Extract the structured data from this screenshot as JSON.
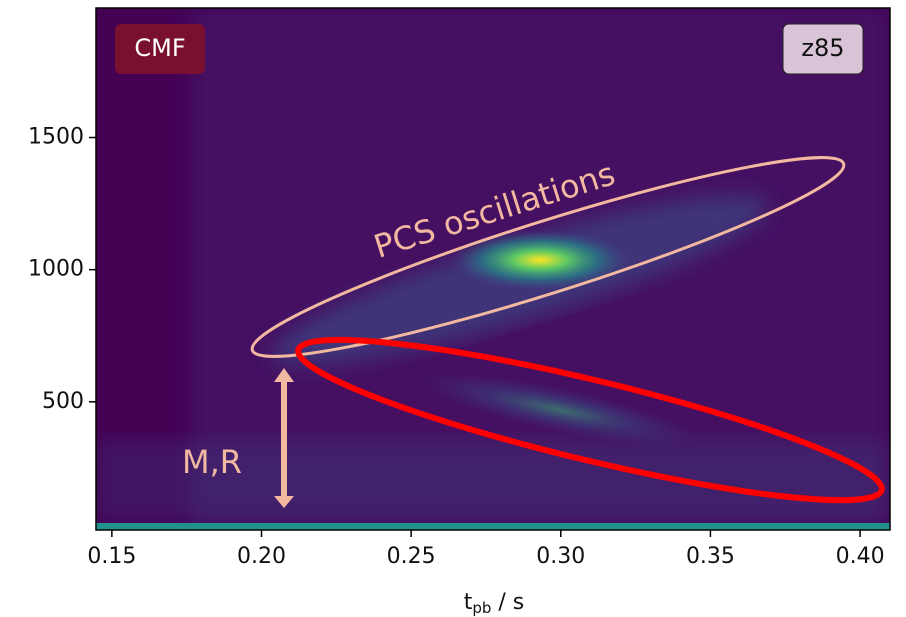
{
  "chart_data": {
    "type": "spectrogram",
    "xlabel": {
      "base": "t",
      "subscript": "pb",
      "rest": " / s"
    },
    "xlim": [
      0.1447,
      0.41
    ],
    "ylim": [
      15,
      1990
    ],
    "xticks": [
      0.15,
      {
        "value": 0.2,
        "label": "0.20"
      },
      0.25,
      {
        "value": 0.3,
        "label": "0.30"
      },
      0.35,
      {
        "value": 0.4,
        "label": "0.40"
      }
    ],
    "yticks": [
      500,
      1000,
      1500
    ],
    "annotations": {
      "model": "CMF",
      "label": "z85",
      "pcs": "PCS oscillations",
      "mr": "M,R"
    }
  }
}
